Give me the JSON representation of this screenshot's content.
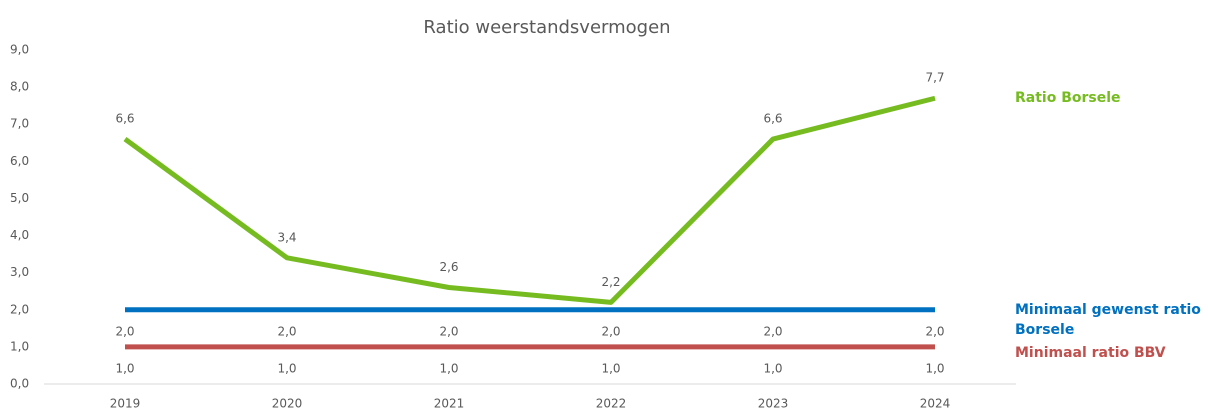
{
  "chart_data": {
    "type": "line",
    "title": "Ratio weerstandsvermogen",
    "categories": [
      "2019",
      "2020",
      "2021",
      "2022",
      "2023",
      "2024"
    ],
    "series": [
      {
        "name": "Ratio Borsele",
        "color": "#76bc21",
        "values": [
          6.6,
          3.4,
          2.6,
          2.2,
          6.6,
          7.7
        ],
        "value_labels": [
          "6,6",
          "3,4",
          "2,6",
          "2,2",
          "6,6",
          "7,7"
        ]
      },
      {
        "name": "Minimaal gewenst ratio Borsele",
        "color": "#0070c0",
        "values": [
          2.0,
          2.0,
          2.0,
          2.0,
          2.0,
          2.0
        ],
        "value_labels": [
          "2,0",
          "2,0",
          "2,0",
          "2,0",
          "2,0",
          "2,0"
        ]
      },
      {
        "name": "Minimaal ratio BBV",
        "color": "#c0504d",
        "values": [
          1.0,
          1.0,
          1.0,
          1.0,
          1.0,
          1.0
        ],
        "value_labels": [
          "1,0",
          "1,0",
          "1,0",
          "1,0",
          "1,0",
          "1,0"
        ]
      }
    ],
    "ylim": [
      0,
      9
    ],
    "yticks": [
      {
        "value": 0,
        "label": "0,0"
      },
      {
        "value": 1,
        "label": "1,0"
      },
      {
        "value": 2,
        "label": "2,0"
      },
      {
        "value": 3,
        "label": "3,0"
      },
      {
        "value": 4,
        "label": "4,0"
      },
      {
        "value": 5,
        "label": "5,0"
      },
      {
        "value": 6,
        "label": "6,0"
      },
      {
        "value": 7,
        "label": "7,0"
      },
      {
        "value": 8,
        "label": "8,0"
      },
      {
        "value": 9,
        "label": "9,0"
      }
    ],
    "grid": false,
    "legend": "right"
  }
}
